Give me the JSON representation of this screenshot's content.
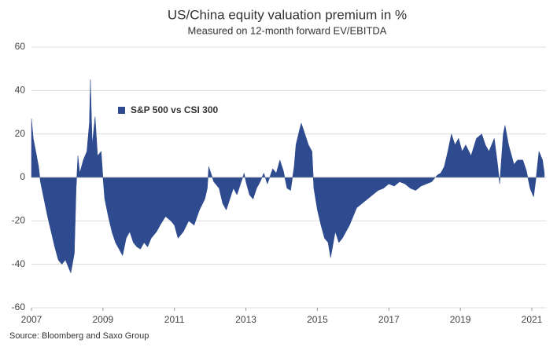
{
  "chart_data": {
    "type": "area",
    "title": "US/China equity valuation premium in %",
    "subtitle": "Measured on 12-month forward EV/EBITDA",
    "source": "Source: Bloomberg and Saxo Group",
    "grid": true,
    "legend": "upper left",
    "ylim": [
      -60,
      60
    ],
    "yticks": [
      -60,
      -40,
      -20,
      0,
      20,
      40,
      60
    ],
    "xlim": [
      2007,
      2021.4
    ],
    "xticks": [
      2007,
      2009,
      2011,
      2013,
      2015,
      2017,
      2019,
      2021
    ],
    "series": [
      {
        "name": "S&P 500 vs CSI 300",
        "color": "#2f4b8f",
        "x": [
          2007.0,
          2007.05,
          2007.12,
          2007.2,
          2007.25,
          2007.35,
          2007.45,
          2007.55,
          2007.65,
          2007.75,
          2007.85,
          2007.95,
          2008.05,
          2008.1,
          2008.2,
          2008.25,
          2008.3,
          2008.35,
          2008.45,
          2008.55,
          2008.62,
          2008.65,
          2008.7,
          2008.78,
          2008.85,
          2008.95,
          2009.0,
          2009.05,
          2009.15,
          2009.25,
          2009.35,
          2009.45,
          2009.55,
          2009.65,
          2009.75,
          2009.85,
          2009.95,
          2010.05,
          2010.15,
          2010.25,
          2010.35,
          2010.5,
          2010.6,
          2010.75,
          2010.9,
          2011.0,
          2011.1,
          2011.25,
          2011.4,
          2011.55,
          2011.7,
          2011.85,
          2011.92,
          2011.96,
          2012.1,
          2012.25,
          2012.35,
          2012.45,
          2012.55,
          2012.65,
          2012.75,
          2012.85,
          2012.95,
          2013.0,
          2013.1,
          2013.2,
          2013.3,
          2013.4,
          2013.5,
          2013.6,
          2013.75,
          2013.85,
          2013.95,
          2014.05,
          2014.15,
          2014.25,
          2014.35,
          2014.4,
          2014.5,
          2014.55,
          2014.65,
          2014.75,
          2014.85,
          2014.9,
          2015.0,
          2015.1,
          2015.2,
          2015.3,
          2015.37,
          2015.5,
          2015.6,
          2015.7,
          2015.8,
          2015.9,
          2016.0,
          2016.1,
          2016.25,
          2016.4,
          2016.55,
          2016.7,
          2016.85,
          2017.0,
          2017.15,
          2017.3,
          2017.45,
          2017.6,
          2017.75,
          2017.9,
          2018.05,
          2018.2,
          2018.35,
          2018.45,
          2018.55,
          2018.65,
          2018.75,
          2018.85,
          2018.95,
          2019.05,
          2019.15,
          2019.3,
          2019.45,
          2019.6,
          2019.7,
          2019.8,
          2019.95,
          2020.05,
          2020.1,
          2020.2,
          2020.25,
          2020.35,
          2020.5,
          2020.6,
          2020.75,
          2020.85,
          2020.95,
          2021.05,
          2021.12,
          2021.2,
          2021.3,
          2021.35
        ],
        "values": [
          27,
          18,
          12,
          5,
          -2,
          -10,
          -18,
          -25,
          -32,
          -38,
          -40,
          -38,
          -42,
          -44,
          -35,
          -5,
          10,
          2,
          8,
          12,
          25,
          45,
          15,
          28,
          10,
          12,
          0,
          -10,
          -18,
          -25,
          -30,
          -33,
          -36,
          -28,
          -25,
          -30,
          -32,
          -33,
          -30,
          -32,
          -28,
          -25,
          -22,
          -18,
          -20,
          -22,
          -28,
          -25,
          -20,
          -22,
          -15,
          -10,
          -5,
          5,
          -2,
          -5,
          -12,
          -15,
          -10,
          -5,
          -8,
          -3,
          2,
          -2,
          -8,
          -10,
          -5,
          -2,
          2,
          -3,
          4,
          2,
          8,
          3,
          -5,
          -6,
          5,
          15,
          22,
          25,
          20,
          15,
          12,
          -5,
          -15,
          -22,
          -28,
          -30,
          -37,
          -25,
          -30,
          -28,
          -25,
          -22,
          -18,
          -14,
          -12,
          -10,
          -8,
          -6,
          -5,
          -3,
          -4,
          -2,
          -3,
          -5,
          -6,
          -4,
          -3,
          -2,
          1,
          2,
          5,
          12,
          20,
          15,
          18,
          12,
          15,
          10,
          18,
          20,
          15,
          12,
          18,
          5,
          -3,
          20,
          24,
          15,
          6,
          8,
          8,
          3,
          -5,
          -9,
          0,
          12,
          8,
          2
        ]
      }
    ]
  }
}
